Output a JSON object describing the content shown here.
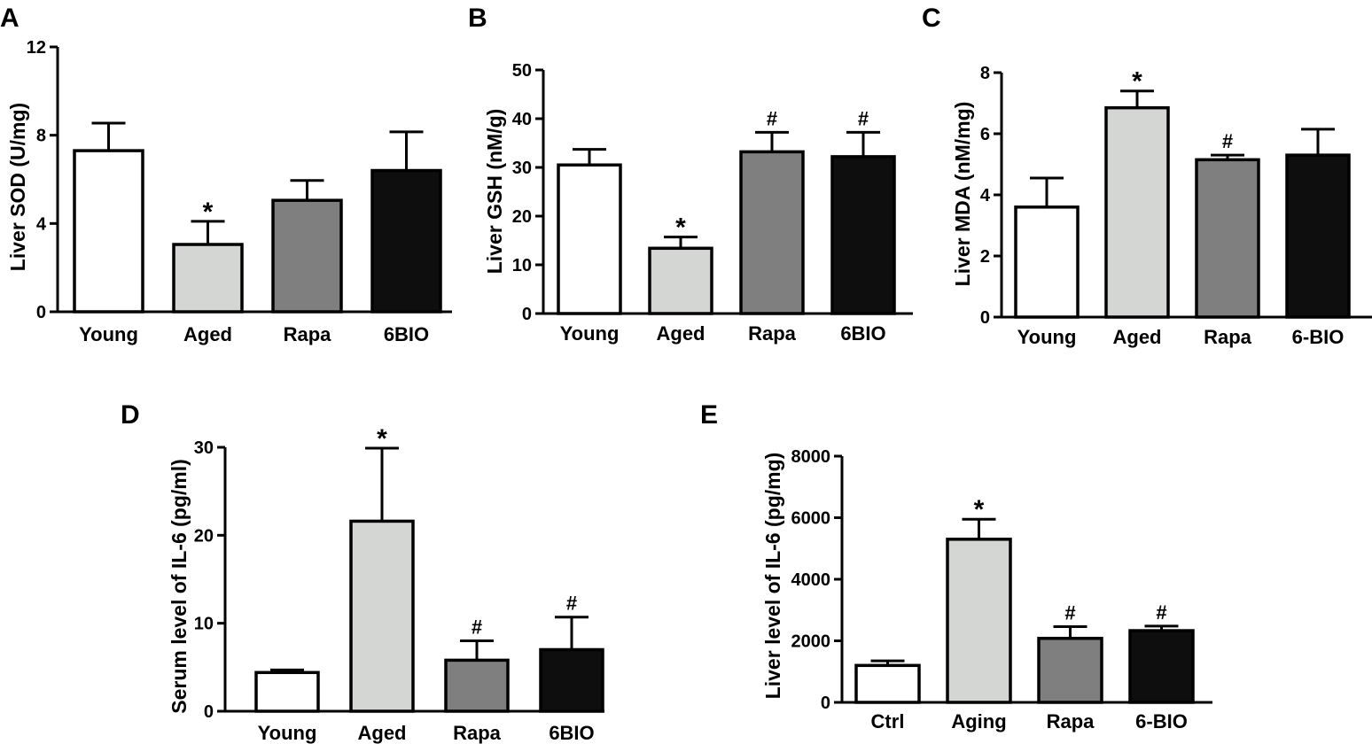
{
  "chart_data": [
    {
      "panel": "A",
      "type": "bar",
      "title": "",
      "xlabel": "",
      "ylabel": "Liver SOD (U/mg)",
      "ylim": [
        0,
        12
      ],
      "yticks": [
        0,
        4,
        8,
        12
      ],
      "grid": false,
      "categories": [
        "Young",
        "Aged",
        "Rapa",
        "6BIO"
      ],
      "values": [
        7.3,
        3.05,
        5.05,
        6.4
      ],
      "errors": [
        1.25,
        1.05,
        0.9,
        1.75
      ],
      "annotations": [
        "",
        "*",
        "",
        ""
      ],
      "colors": [
        "#ffffff",
        "#d4d6d4",
        "#7f7f7f",
        "#0e0e0e"
      ]
    },
    {
      "panel": "B",
      "type": "bar",
      "title": "",
      "xlabel": "",
      "ylabel": "Liver GSH (nM/g)",
      "ylim": [
        0,
        50
      ],
      "yticks": [
        0,
        10,
        20,
        30,
        40,
        50
      ],
      "grid": false,
      "categories": [
        "Young",
        "Aged",
        "Rapa",
        "6BIO"
      ],
      "values": [
        30.5,
        13.4,
        33.2,
        32.2
      ],
      "errors": [
        3.2,
        2.3,
        4.0,
        5.0
      ],
      "annotations": [
        "",
        "*",
        "#",
        "#"
      ],
      "colors": [
        "#ffffff",
        "#d4d6d4",
        "#7f7f7f",
        "#0e0e0e"
      ]
    },
    {
      "panel": "C",
      "type": "bar",
      "title": "",
      "xlabel": "",
      "ylabel": "Liver MDA (nM/mg)",
      "ylim": [
        0,
        8
      ],
      "yticks": [
        0,
        2,
        4,
        6,
        8
      ],
      "grid": false,
      "categories": [
        "Young",
        "Aged",
        "Rapa",
        "6-BIO"
      ],
      "values": [
        3.6,
        6.85,
        5.15,
        5.3
      ],
      "errors": [
        0.95,
        0.55,
        0.15,
        0.85
      ],
      "annotations": [
        "",
        "*",
        "#",
        ""
      ],
      "colors": [
        "#ffffff",
        "#d4d6d4",
        "#7f7f7f",
        "#0e0e0e"
      ]
    },
    {
      "panel": "D",
      "type": "bar",
      "title": "",
      "xlabel": "",
      "ylabel": "Serum level of IL-6 (pg/ml)",
      "ylim": [
        0,
        30
      ],
      "yticks": [
        0,
        10,
        20,
        30
      ],
      "grid": false,
      "categories": [
        "Young",
        "Aged",
        "Rapa",
        "6BIO"
      ],
      "values": [
        4.4,
        21.6,
        5.8,
        7.0
      ],
      "errors": [
        0.3,
        8.3,
        2.2,
        3.7
      ],
      "annotations": [
        "",
        "*",
        "#",
        "#"
      ],
      "colors": [
        "#ffffff",
        "#d4d6d4",
        "#7f7f7f",
        "#0e0e0e"
      ]
    },
    {
      "panel": "E",
      "type": "bar",
      "title": "",
      "xlabel": "",
      "ylabel": "Liver level of IL-6 (pg/mg)",
      "ylim": [
        0,
        8000
      ],
      "yticks": [
        0,
        2000,
        4000,
        6000,
        8000
      ],
      "grid": false,
      "categories": [
        "Ctrl",
        "Aging",
        "Rapa",
        "6-BIO"
      ],
      "values": [
        1200,
        5300,
        2080,
        2330
      ],
      "errors": [
        150,
        650,
        380,
        150
      ],
      "annotations": [
        "",
        "*",
        "#",
        "#"
      ],
      "colors": [
        "#ffffff",
        "#d4d6d4",
        "#7f7f7f",
        "#0e0e0e"
      ]
    }
  ]
}
